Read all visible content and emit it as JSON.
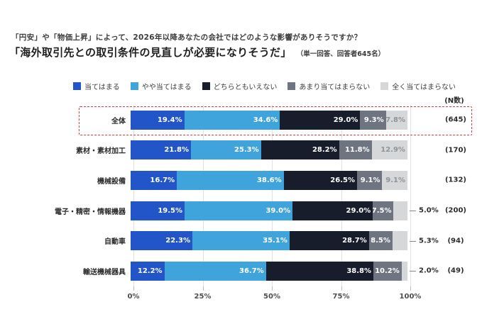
{
  "page": {
    "title_line1": "「円安」や「物価上昇」によって、2026年以降あなたの会社ではどのような影響がありそうですか？",
    "title_line2": "「海外取引先との取引条件の見直しが必要になりそうだ」",
    "title_note": "（単一回答、回答者645名）",
    "n_header": "(N数)"
  },
  "legend": {
    "items": [
      {
        "label": "当てはまる",
        "color": "#2155c8"
      },
      {
        "label": "やや当てはまる",
        "color": "#3fa3dc"
      },
      {
        "label": "どちらともいえない",
        "color": "#171d2b"
      },
      {
        "label": "あまり当てはまらない",
        "color": "#6e7480"
      },
      {
        "label": "全く当てはまらない",
        "color": "#d5d7d9"
      }
    ]
  },
  "chart_data": {
    "type": "bar",
    "stacked": true,
    "orientation": "horizontal",
    "unit": "%",
    "xlim": [
      0,
      100
    ],
    "xticks": [
      "0%",
      "25%",
      "50%",
      "75%",
      "100%"
    ],
    "grid": true,
    "legend_position": "top",
    "series_names": [
      "当てはまる",
      "やや当てはまる",
      "どちらともいえない",
      "あまり当てはまらない",
      "全く当てはまらない"
    ],
    "categories": [
      "全体",
      "素材・素材加工",
      "機械設備",
      "電子・精密・情報機器",
      "自動車",
      "輸送機械器具"
    ],
    "highlighted_category": "全体",
    "rows": [
      {
        "category": "全体",
        "values": [
          19.4,
          34.6,
          29.0,
          9.3,
          7.8
        ],
        "n": "(645)",
        "outside_last": false,
        "highlight": true
      },
      {
        "category": "素材・素材加工",
        "values": [
          21.8,
          25.3,
          28.2,
          11.8,
          12.9
        ],
        "n": "(170)",
        "outside_last": false,
        "highlight": false
      },
      {
        "category": "機械設備",
        "values": [
          16.7,
          38.6,
          26.5,
          9.1,
          9.1
        ],
        "n": "(132)",
        "outside_last": false,
        "highlight": false
      },
      {
        "category": "電子・精密・情報機器",
        "values": [
          19.5,
          39.0,
          29.0,
          7.5,
          5.0
        ],
        "n": "(200)",
        "outside_last": true,
        "highlight": false
      },
      {
        "category": "自動車",
        "values": [
          22.3,
          35.1,
          28.7,
          8.5,
          5.3
        ],
        "n": "(94)",
        "outside_last": true,
        "highlight": false
      },
      {
        "category": "輸送機械器具",
        "values": [
          12.2,
          36.7,
          38.8,
          10.2,
          2.0
        ],
        "n": "(49)",
        "outside_last": true,
        "highlight": false
      }
    ]
  }
}
